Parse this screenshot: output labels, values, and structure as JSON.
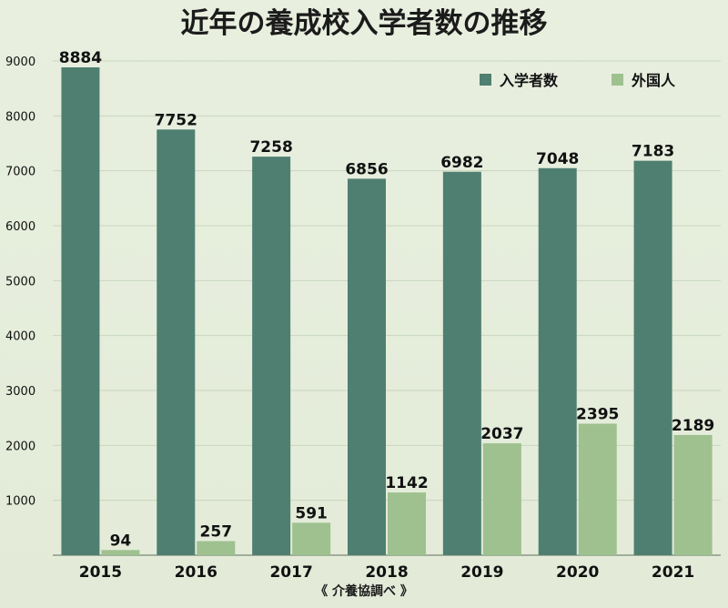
{
  "chart_data": {
    "type": "bar",
    "title": "近年の養成校入学者数の推移",
    "source": "《 介養協調べ 》",
    "categories": [
      "2015",
      "2016",
      "2017",
      "2018",
      "2019",
      "2020",
      "2021"
    ],
    "series": [
      {
        "name": "入学者数",
        "color": "#4f7f71",
        "values": [
          8884,
          7752,
          7258,
          6856,
          6982,
          7048,
          7183
        ]
      },
      {
        "name": "外国人",
        "color": "#9ec18f",
        "values": [
          94,
          257,
          591,
          1142,
          2037,
          2395,
          2189
        ]
      }
    ],
    "ylim": [
      0,
      9000
    ],
    "yticks": [
      1000,
      2000,
      3000,
      4000,
      5000,
      6000,
      7000,
      8000,
      9000
    ],
    "grid": true,
    "legend_position": "top-right",
    "data_labels": true
  }
}
